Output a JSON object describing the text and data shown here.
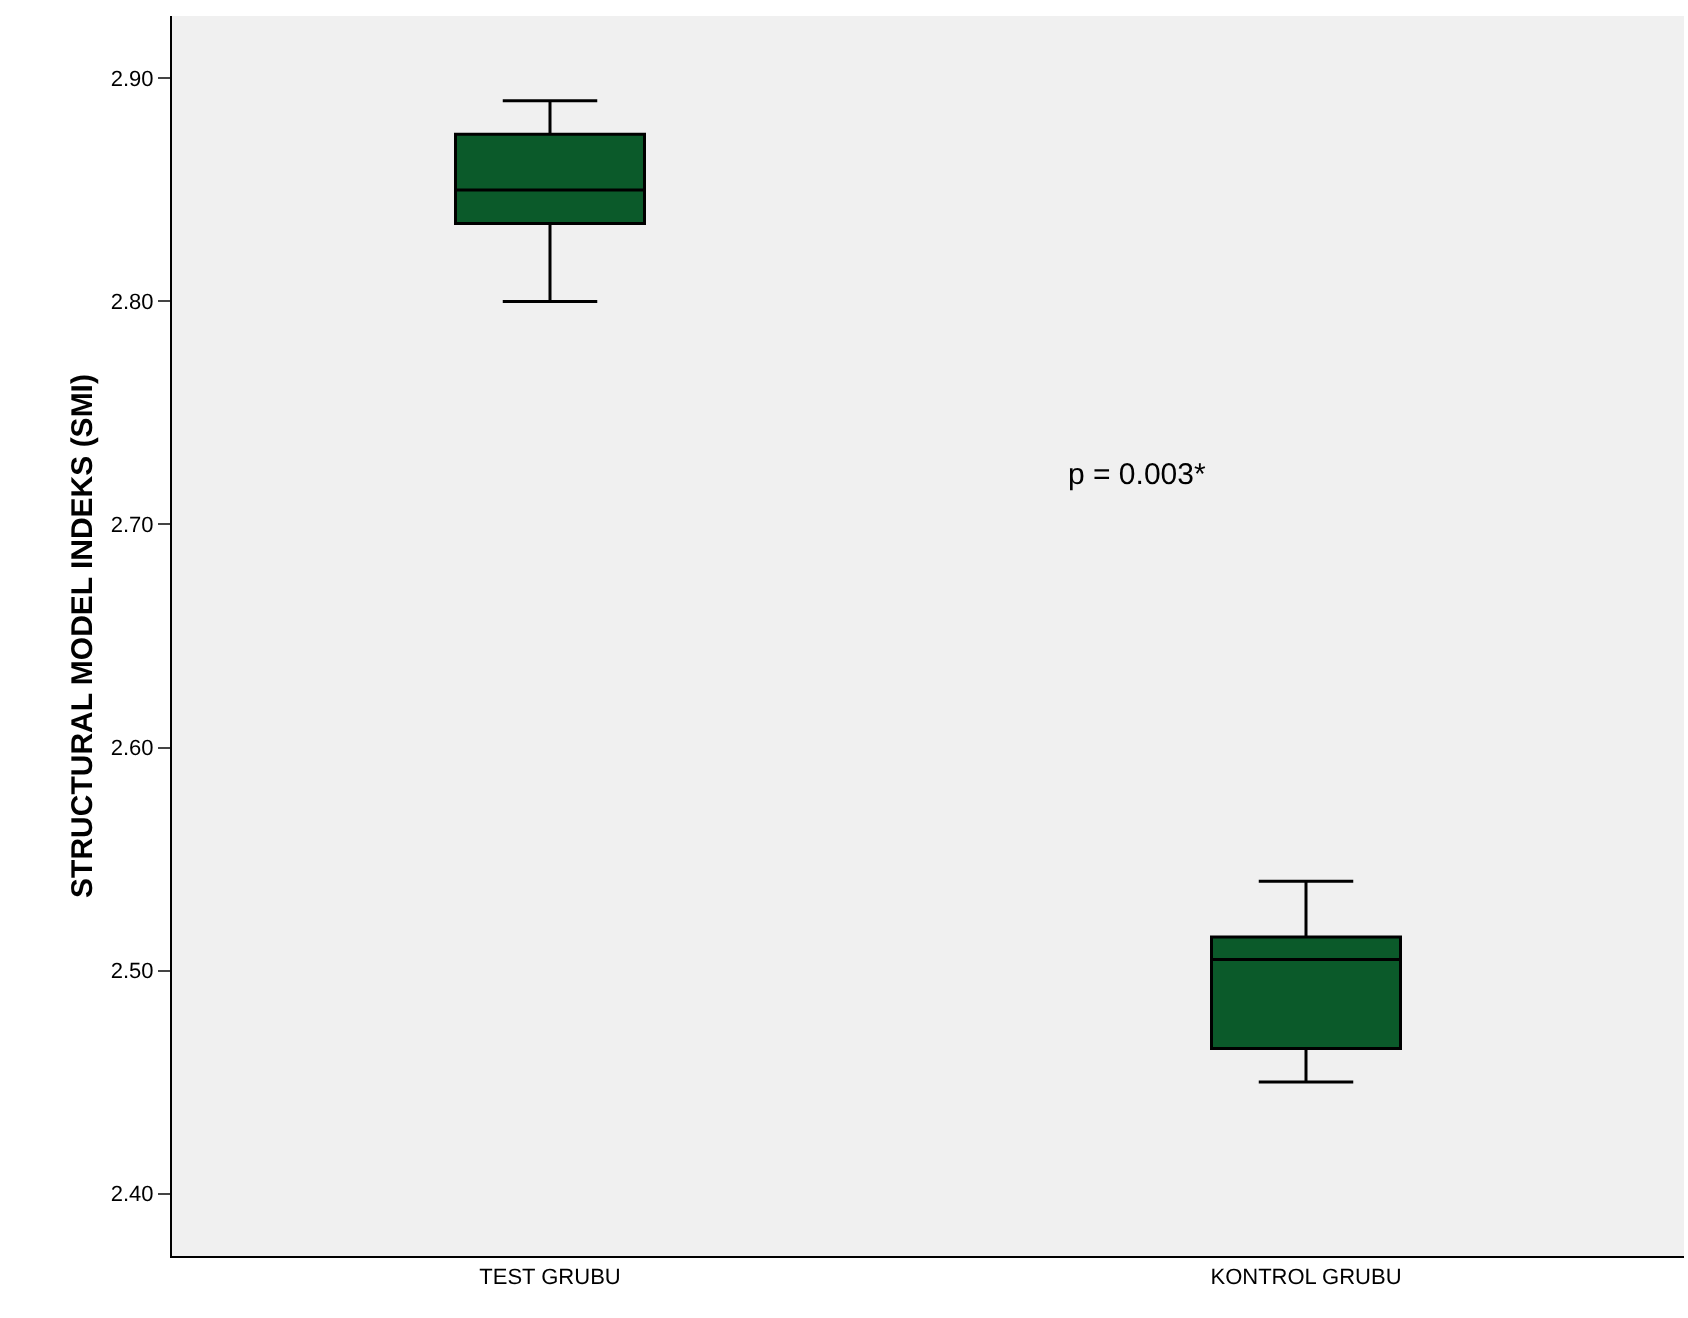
{
  "chart_data": {
    "type": "box",
    "ylabel": "STRUCTURAL MODEL INDEKS (SMI)",
    "categories": [
      "TEST GRUBU",
      "KONTROL GRUBU"
    ],
    "boxes": [
      {
        "low": 2.8,
        "q1": 2.835,
        "median": 2.85,
        "q3": 2.875,
        "high": 2.89
      },
      {
        "low": 2.45,
        "q1": 2.465,
        "median": 2.505,
        "q3": 2.515,
        "high": 2.54
      }
    ],
    "color": "#0b5a2a",
    "ylim": [
      2.372,
      2.928
    ],
    "yticks": [
      {
        "value": 2.4,
        "label": "2.40"
      },
      {
        "value": 2.5,
        "label": "2.50"
      },
      {
        "value": 2.6,
        "label": "2.60"
      },
      {
        "value": 2.7,
        "label": "2.70"
      },
      {
        "value": 2.8,
        "label": "2.80"
      },
      {
        "value": 2.9,
        "label": "2.90"
      }
    ],
    "grid": false,
    "legend": false,
    "annotations": [
      "p = 0.003*"
    ]
  }
}
